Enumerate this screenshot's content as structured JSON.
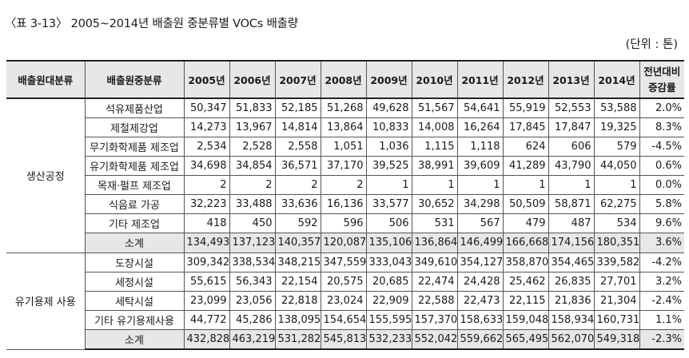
{
  "title": "〈표 3-13〉 2005~2014년 배출원 중분류별 VOCs 배출량",
  "unit": "(단위 : 톤)",
  "headers": {
    "major": "배출원대분류",
    "minor": "배출원중분류",
    "years": [
      "2005년",
      "2006년",
      "2007년",
      "2008년",
      "2009년",
      "2010년",
      "2011년",
      "2012년",
      "2013년",
      "2014년"
    ],
    "change_line1": "전년대비",
    "change_line2": "증감률"
  },
  "groups": [
    {
      "name": "생산공정",
      "rows": [
        {
          "name": "석유제품산업",
          "values": [
            "50,347",
            "51,833",
            "52,185",
            "51,268",
            "49,628",
            "51,567",
            "54,641",
            "55,919",
            "52,553",
            "53,588"
          ],
          "change": "2.0%"
        },
        {
          "name": "제철제강업",
          "values": [
            "14,273",
            "13,967",
            "14,814",
            "13,864",
            "10,833",
            "14,008",
            "16,264",
            "17,845",
            "17,847",
            "19,325"
          ],
          "change": "8.3%"
        },
        {
          "name": "무기화학제품 제조업",
          "values": [
            "2,534",
            "2,528",
            "2,558",
            "1,051",
            "1,036",
            "1,115",
            "1,118",
            "624",
            "606",
            "579"
          ],
          "change": "-4.5%"
        },
        {
          "name": "유기화학제품 제조업",
          "values": [
            "34,698",
            "34,854",
            "36,571",
            "37,170",
            "39,525",
            "38,991",
            "39,609",
            "41,289",
            "43,790",
            "44,050"
          ],
          "change": "0.6%"
        },
        {
          "name": "목재·펄프 제조업",
          "values": [
            "2",
            "2",
            "2",
            "2",
            "1",
            "1",
            "1",
            "1",
            "1",
            "1"
          ],
          "change": "0.0%"
        },
        {
          "name": "식음료 가공",
          "values": [
            "32,223",
            "33,488",
            "33,636",
            "16,136",
            "33,577",
            "30,652",
            "34,298",
            "50,509",
            "58,871",
            "62,275"
          ],
          "change": "5.8%"
        },
        {
          "name": "기타 제조업",
          "values": [
            "418",
            "450",
            "592",
            "596",
            "506",
            "531",
            "567",
            "479",
            "487",
            "534"
          ],
          "change": "9.6%"
        }
      ],
      "subtotal": {
        "name": "소계",
        "values": [
          "134,493",
          "137,123",
          "140,357",
          "120,087",
          "135,106",
          "136,864",
          "146,499",
          "166,668",
          "174,156",
          "180,351"
        ],
        "change": "3.6%"
      }
    },
    {
      "name": "유기용제 사용",
      "rows": [
        {
          "name": "도장시설",
          "values": [
            "309,342",
            "338,534",
            "348,215",
            "347,559",
            "333,043",
            "349,610",
            "354,127",
            "358,870",
            "354,465",
            "339,582"
          ],
          "change": "-4.2%"
        },
        {
          "name": "세정시설",
          "values": [
            "55,615",
            "56,343",
            "22,154",
            "20,575",
            "20,685",
            "22,474",
            "24,428",
            "25,462",
            "26,835",
            "27,701"
          ],
          "change": "3.2%"
        },
        {
          "name": "세탁시설",
          "values": [
            "23,099",
            "23,056",
            "22,818",
            "23,024",
            "22,909",
            "22,588",
            "22,473",
            "22,115",
            "21,836",
            "21,304"
          ],
          "change": "-2.4%"
        },
        {
          "name": "기타 유기용제사용",
          "values": [
            "44,772",
            "45,286",
            "138,095",
            "154,654",
            "155,595",
            "157,370",
            "158,633",
            "159,048",
            "158,934",
            "160,731"
          ],
          "change": "1.1%"
        }
      ],
      "subtotal": {
        "name": "소계",
        "values": [
          "432,828",
          "463,219",
          "531,282",
          "545,813",
          "532,233",
          "552,042",
          "559,662",
          "565,495",
          "562,070",
          "549,318"
        ],
        "change": "-2.3%"
      }
    }
  ]
}
